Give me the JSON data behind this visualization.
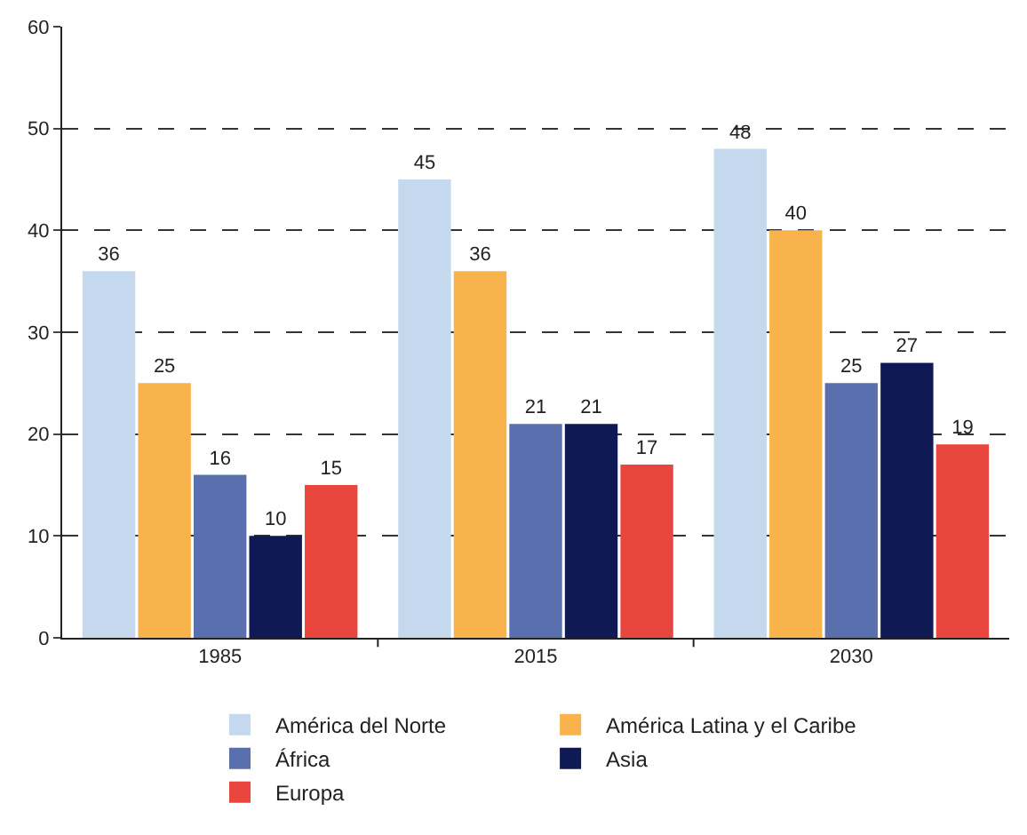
{
  "chart_data": {
    "type": "bar",
    "categories": [
      "1985",
      "2015",
      "2030"
    ],
    "series": [
      {
        "name": "América del Norte",
        "color": "#c5d9ee",
        "values": [
          36,
          45,
          48
        ]
      },
      {
        "name": "América Latina y el Caribe",
        "color": "#f9b34c",
        "values": [
          25,
          36,
          40
        ]
      },
      {
        "name": "África",
        "color": "#5a6fae",
        "values": [
          16,
          21,
          25
        ]
      },
      {
        "name": "Asia",
        "color": "#0f1a55",
        "values": [
          10,
          21,
          27
        ]
      },
      {
        "name": "Europa",
        "color": "#e9463d",
        "values": [
          15,
          17,
          19
        ]
      }
    ],
    "ylim": [
      0,
      60
    ],
    "yticks": [
      0,
      10,
      20,
      30,
      40,
      50,
      60
    ],
    "grid": "y",
    "legend": "bottom",
    "data_labels": true
  }
}
